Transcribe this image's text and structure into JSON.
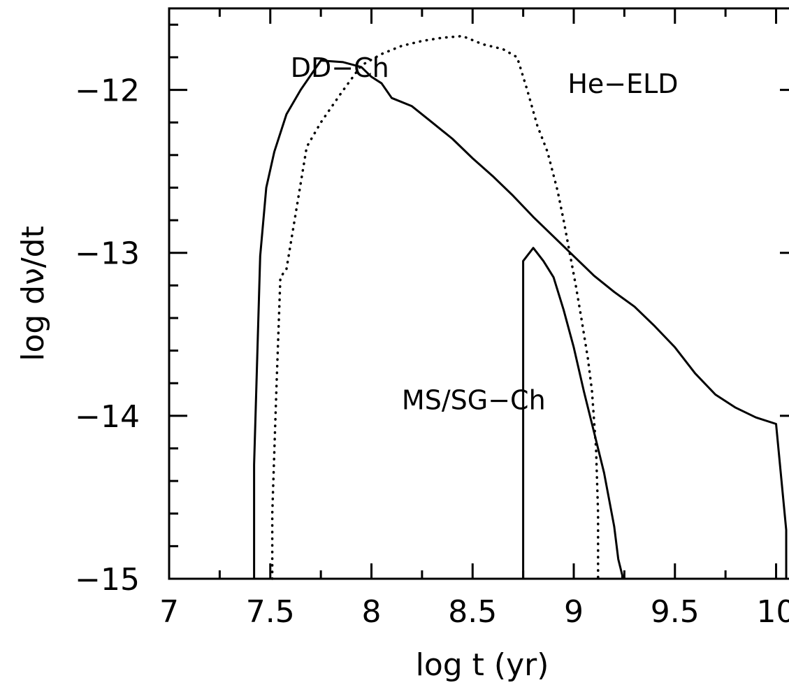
{
  "chart_data": {
    "type": "line",
    "xlabel": "log t (yr)",
    "ylabel": "log dν/dt",
    "xlim": [
      7,
      10.05
    ],
    "ylim": [
      -15,
      -11.5
    ],
    "x_ticks": [
      7,
      7.5,
      8,
      8.5,
      9,
      9.5,
      10
    ],
    "x_tick_labels": [
      "7",
      "7.5",
      "8",
      "8.5",
      "9",
      "9.5",
      "10"
    ],
    "y_ticks": [
      -15,
      -14,
      -13,
      -12
    ],
    "y_tick_labels": [
      "−15",
      "−14",
      "−13",
      "−12"
    ],
    "grid": false,
    "series": [
      {
        "name": "DD−Ch",
        "style": "solid",
        "x": [
          7.42,
          7.42,
          7.45,
          7.48,
          7.52,
          7.58,
          7.65,
          7.75,
          7.86,
          7.95,
          8.0,
          8.05,
          8.1,
          8.2,
          8.3,
          8.4,
          8.5,
          8.6,
          8.7,
          8.8,
          8.9,
          9.0,
          9.1,
          9.2,
          9.3,
          9.4,
          9.5,
          9.6,
          9.7,
          9.8,
          9.9,
          10.0,
          10.05,
          10.05
        ],
        "y": [
          -15,
          -14.3,
          -13.02,
          -12.6,
          -12.38,
          -12.15,
          -12.0,
          -11.82,
          -11.83,
          -11.86,
          -11.92,
          -11.96,
          -12.05,
          -12.1,
          -12.2,
          -12.3,
          -12.42,
          -12.53,
          -12.65,
          -12.78,
          -12.9,
          -13.02,
          -13.14,
          -13.24,
          -13.33,
          -13.45,
          -13.58,
          -13.74,
          -13.87,
          -13.95,
          -14.01,
          -14.05,
          -14.7,
          -15
        ]
      },
      {
        "name": "He−ELD",
        "style": "dotted",
        "x": [
          7.51,
          7.51,
          7.53,
          7.55,
          7.58,
          7.62,
          7.68,
          7.75,
          7.85,
          7.95,
          8.05,
          8.15,
          8.25,
          8.35,
          8.45,
          8.55,
          8.65,
          8.72,
          8.77,
          8.82,
          8.87,
          8.92,
          8.95,
          8.98,
          9.01,
          9.04,
          9.07,
          9.09,
          9.11,
          9.12,
          9.12
        ],
        "y": [
          -15,
          -14.6,
          -13.85,
          -13.15,
          -13.1,
          -12.8,
          -12.35,
          -12.2,
          -12.02,
          -11.85,
          -11.78,
          -11.73,
          -11.7,
          -11.68,
          -11.67,
          -11.72,
          -11.75,
          -11.8,
          -12.0,
          -12.22,
          -12.38,
          -12.62,
          -12.8,
          -13.0,
          -13.2,
          -13.42,
          -13.65,
          -13.85,
          -14.2,
          -14.6,
          -15
        ]
      },
      {
        "name": "MS/SG−Ch",
        "style": "solid",
        "x": [
          8.75,
          8.75,
          8.8,
          8.85,
          8.9,
          8.95,
          9.0,
          9.05,
          9.1,
          9.15,
          9.2,
          9.22,
          9.24,
          9.24
        ],
        "y": [
          -15,
          -13.05,
          -12.97,
          -13.05,
          -13.15,
          -13.35,
          -13.58,
          -13.85,
          -14.1,
          -14.35,
          -14.68,
          -14.88,
          -14.98,
          -15
        ]
      }
    ],
    "annotations": [
      {
        "text": "DD−Ch",
        "x": 7.6,
        "y": -11.92
      },
      {
        "text": "He−ELD",
        "x": 8.97,
        "y": -12.02
      },
      {
        "text": "MS/SG−Ch",
        "x": 8.15,
        "y": -13.96
      }
    ]
  }
}
